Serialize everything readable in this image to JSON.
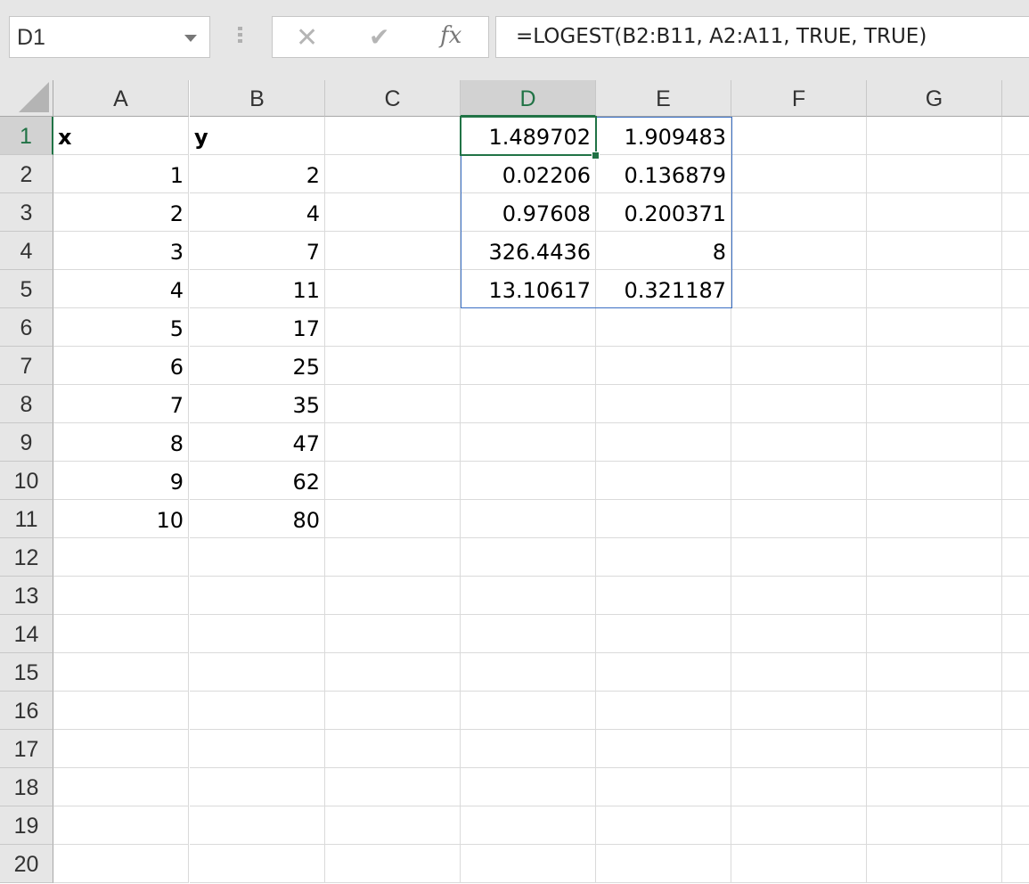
{
  "name_box": {
    "value": "D1"
  },
  "formula_bar": {
    "cancel_icon": "x-icon",
    "enter_icon": "check-icon",
    "fx_label": "fx",
    "formula": "=LOGEST(B2:B11, A2:A11, TRUE, TRUE)"
  },
  "selection": {
    "active_cell": "D1",
    "range": "D1:E5"
  },
  "accent_color": "#217346",
  "columns": [
    "A",
    "B",
    "C",
    "D",
    "E",
    "F",
    "G"
  ],
  "rows": [
    [
      "x",
      "y",
      "",
      "1.489702",
      "1.909483",
      "",
      ""
    ],
    [
      "1",
      "2",
      "",
      "0.02206",
      "0.136879",
      "",
      ""
    ],
    [
      "2",
      "4",
      "",
      "0.97608",
      "0.200371",
      "",
      ""
    ],
    [
      "3",
      "7",
      "",
      "326.4436",
      "8",
      "",
      ""
    ],
    [
      "4",
      "11",
      "",
      "13.10617",
      "0.321187",
      "",
      ""
    ],
    [
      "5",
      "17",
      "",
      "",
      "",
      "",
      ""
    ],
    [
      "6",
      "25",
      "",
      "",
      "",
      "",
      ""
    ],
    [
      "7",
      "35",
      "",
      "",
      "",
      "",
      ""
    ],
    [
      "8",
      "47",
      "",
      "",
      "",
      "",
      ""
    ],
    [
      "9",
      "62",
      "",
      "",
      "",
      "",
      ""
    ],
    [
      "10",
      "80",
      "",
      "",
      "",
      "",
      ""
    ],
    [
      "",
      "",
      "",
      "",
      "",
      "",
      ""
    ],
    [
      "",
      "",
      "",
      "",
      "",
      "",
      ""
    ],
    [
      "",
      "",
      "",
      "",
      "",
      "",
      ""
    ],
    [
      "",
      "",
      "",
      "",
      "",
      "",
      ""
    ],
    [
      "",
      "",
      "",
      "",
      "",
      "",
      ""
    ],
    [
      "",
      "",
      "",
      "",
      "",
      "",
      ""
    ],
    [
      "",
      "",
      "",
      "",
      "",
      "",
      ""
    ],
    [
      "",
      "",
      "",
      "",
      "",
      "",
      ""
    ],
    [
      "",
      "",
      "",
      "",
      "",
      "",
      ""
    ]
  ],
  "row_numbers": [
    "1",
    "2",
    "3",
    "4",
    "5",
    "6",
    "7",
    "8",
    "9",
    "10",
    "11",
    "12",
    "13",
    "14",
    "15",
    "16",
    "17",
    "18",
    "19",
    "20"
  ]
}
